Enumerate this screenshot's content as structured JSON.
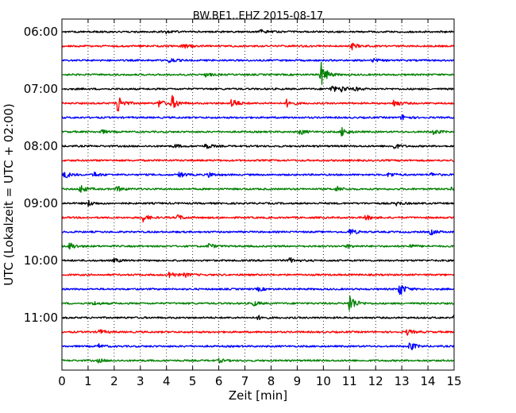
{
  "chart_data": {
    "type": "line",
    "title": "BW.BE1..EHZ 2015-08-17",
    "xlabel": "Zeit  [min]",
    "ylabel": "UTC (Lokalzeit = UTC + 02:00)",
    "x_ticks": [
      "0",
      "1",
      "2",
      "3",
      "4",
      "5",
      "6",
      "7",
      "8",
      "9",
      "10",
      "11",
      "12",
      "13",
      "14",
      "15"
    ],
    "xlim": [
      0,
      15
    ],
    "y_tick_labels": [
      "06:00",
      "07:00",
      "08:00",
      "09:00",
      "10:00",
      "11:00"
    ],
    "y_tick_rows": [
      0,
      4,
      8,
      12,
      16,
      20
    ],
    "grid": "vertical dotted",
    "colors": [
      "#000000",
      "#ff0000",
      "#0000ff",
      "#008000"
    ],
    "trace_minutes": 15,
    "series": [
      {
        "start": "06:00",
        "events": [
          [
            4.0,
            0.15
          ],
          [
            7.6,
            0.2
          ]
        ]
      },
      {
        "start": "06:15",
        "events": [
          [
            4.6,
            0.3
          ],
          [
            11.1,
            0.3
          ]
        ]
      },
      {
        "start": "06:30",
        "events": [
          [
            4.1,
            0.3
          ],
          [
            11.9,
            0.2
          ]
        ]
      },
      {
        "start": "06:45",
        "events": [
          [
            9.9,
            1.4
          ],
          [
            5.5,
            0.2
          ]
        ]
      },
      {
        "start": "07:00",
        "events": [
          [
            10.3,
            0.4
          ],
          [
            10.7,
            0.3
          ],
          [
            11.2,
            0.2
          ]
        ]
      },
      {
        "start": "07:15",
        "events": [
          [
            2.1,
            1.2
          ],
          [
            4.2,
            0.8
          ],
          [
            3.7,
            0.4
          ],
          [
            6.5,
            0.6
          ],
          [
            8.6,
            0.4
          ],
          [
            12.7,
            0.4
          ]
        ]
      },
      {
        "start": "07:30",
        "events": [
          [
            13.0,
            0.3
          ]
        ]
      },
      {
        "start": "07:45",
        "events": [
          [
            10.7,
            0.5
          ],
          [
            9.1,
            0.3
          ],
          [
            1.5,
            0.2
          ],
          [
            14.2,
            0.3
          ]
        ]
      },
      {
        "start": "08:00",
        "events": [
          [
            5.5,
            0.3
          ],
          [
            4.3,
            0.2
          ],
          [
            12.7,
            0.3
          ]
        ]
      },
      {
        "start": "08:15",
        "events": [
          [
            15.0,
            0.2
          ]
        ]
      },
      {
        "start": "08:30",
        "events": [
          [
            0.1,
            0.4
          ],
          [
            1.2,
            0.3
          ],
          [
            4.5,
            0.3
          ],
          [
            5.6,
            0.3
          ],
          [
            12.5,
            0.3
          ],
          [
            14.1,
            0.2
          ]
        ]
      },
      {
        "start": "08:45",
        "events": [
          [
            0.7,
            0.5
          ],
          [
            2.1,
            0.3
          ],
          [
            10.5,
            0.3
          ],
          [
            14.9,
            0.2
          ]
        ]
      },
      {
        "start": "09:00",
        "events": [
          [
            1.0,
            0.3
          ],
          [
            12.8,
            0.2
          ]
        ]
      },
      {
        "start": "09:15",
        "events": [
          [
            3.1,
            0.4
          ],
          [
            4.4,
            0.3
          ],
          [
            11.6,
            0.3
          ]
        ]
      },
      {
        "start": "09:30",
        "events": [
          [
            11.0,
            0.4
          ],
          [
            14.1,
            0.3
          ]
        ]
      },
      {
        "start": "09:45",
        "events": [
          [
            0.3,
            0.4
          ],
          [
            5.6,
            0.3
          ],
          [
            10.9,
            0.2
          ],
          [
            13.3,
            0.2
          ]
        ]
      },
      {
        "start": "10:00",
        "events": [
          [
            8.7,
            0.3
          ],
          [
            2.0,
            0.2
          ]
        ]
      },
      {
        "start": "10:15",
        "events": [
          [
            4.1,
            0.4
          ],
          [
            4.7,
            0.2
          ]
        ]
      },
      {
        "start": "10:30",
        "events": [
          [
            12.9,
            0.8
          ],
          [
            7.5,
            0.2
          ]
        ]
      },
      {
        "start": "10:45",
        "events": [
          [
            11.0,
            1.1
          ],
          [
            7.3,
            0.3
          ],
          [
            1.2,
            0.2
          ]
        ]
      },
      {
        "start": "11:00",
        "events": [
          [
            15.0,
            0.3
          ],
          [
            7.5,
            0.2
          ]
        ]
      },
      {
        "start": "11:15",
        "events": [
          [
            1.4,
            0.3
          ],
          [
            13.2,
            0.3
          ]
        ]
      },
      {
        "start": "11:30",
        "events": [
          [
            13.3,
            0.5
          ],
          [
            1.4,
            0.2
          ]
        ]
      },
      {
        "start": "11:45",
        "events": [
          [
            1.4,
            0.2
          ],
          [
            6.0,
            0.2
          ]
        ]
      }
    ]
  }
}
